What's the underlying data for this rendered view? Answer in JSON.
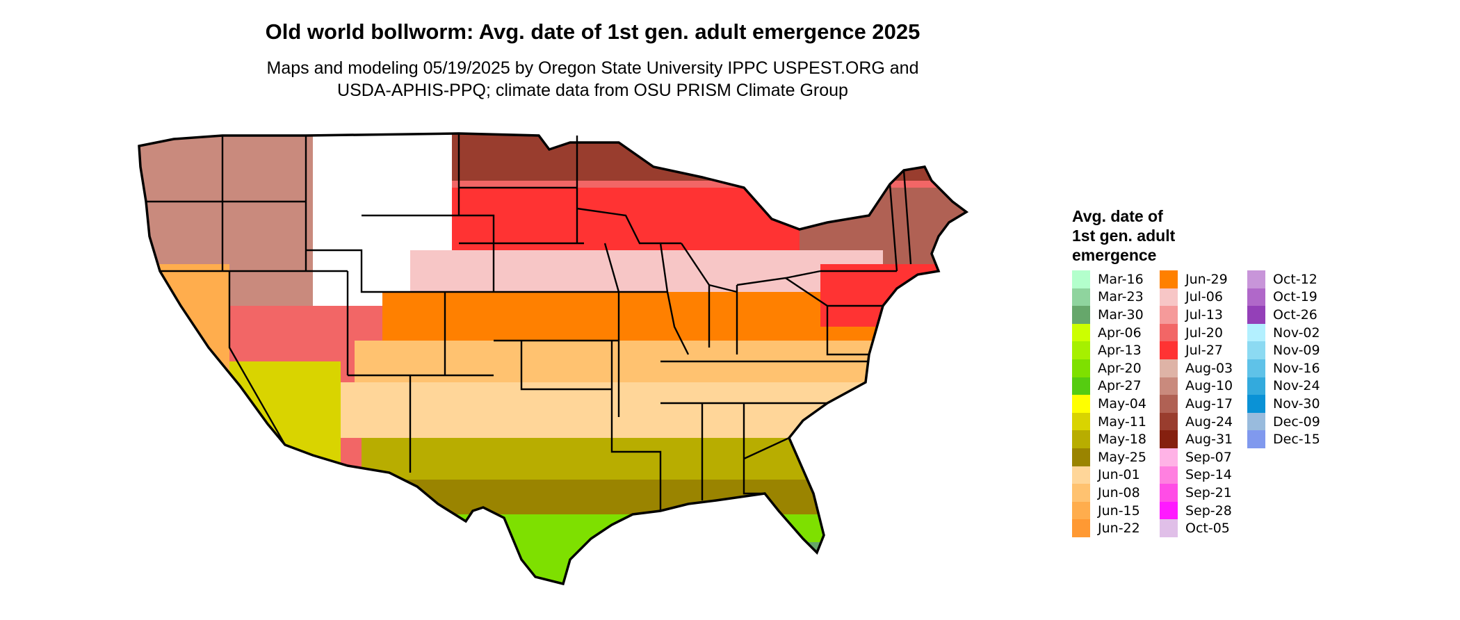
{
  "title": "Old world bollworm: Avg. date of 1st gen. adult emergence 2025",
  "subtitle_line1": "Maps and modeling 05/19/2025 by Oregon State University IPPC USPEST.ORG and",
  "subtitle_line2": "USDA-APHIS-PPQ; climate data from OSU PRISM Climate Group",
  "legend": {
    "title_lines": [
      "Avg. date of",
      "1st gen. adult",
      "emergence"
    ],
    "items": [
      {
        "label": "Mar-16",
        "color": "#b3ffcc"
      },
      {
        "label": "Mar-23",
        "color": "#8fd49e"
      },
      {
        "label": "Mar-30",
        "color": "#66a76b"
      },
      {
        "label": "Apr-06",
        "color": "#ccff00"
      },
      {
        "label": "Apr-13",
        "color": "#a6f000"
      },
      {
        "label": "Apr-20",
        "color": "#7ee000"
      },
      {
        "label": "Apr-27",
        "color": "#55cc11"
      },
      {
        "label": "May-04",
        "color": "#ffff00"
      },
      {
        "label": "May-11",
        "color": "#d9d400"
      },
      {
        "label": "May-18",
        "color": "#b8ad00"
      },
      {
        "label": "May-25",
        "color": "#9a8400"
      },
      {
        "label": "Jun-01",
        "color": "#ffd699"
      },
      {
        "label": "Jun-08",
        "color": "#ffc270"
      },
      {
        "label": "Jun-15",
        "color": "#ffad4d"
      },
      {
        "label": "Jun-22",
        "color": "#ff9933"
      },
      {
        "label": "Jun-29",
        "color": "#ff8000"
      },
      {
        "label": "Jul-06",
        "color": "#f7c6c6"
      },
      {
        "label": "Jul-13",
        "color": "#f59a9a"
      },
      {
        "label": "Jul-20",
        "color": "#f26666"
      },
      {
        "label": "Jul-27",
        "color": "#ff3333"
      },
      {
        "label": "Aug-03",
        "color": "#deb3a6"
      },
      {
        "label": "Aug-10",
        "color": "#c98a7d"
      },
      {
        "label": "Aug-17",
        "color": "#b06154"
      },
      {
        "label": "Aug-24",
        "color": "#993d2e"
      },
      {
        "label": "Aug-31",
        "color": "#85200f"
      },
      {
        "label": "Sep-07",
        "color": "#ffb3e6"
      },
      {
        "label": "Sep-14",
        "color": "#ff80e0"
      },
      {
        "label": "Sep-21",
        "color": "#ff4de6"
      },
      {
        "label": "Sep-28",
        "color": "#ff1aff"
      },
      {
        "label": "Oct-05",
        "color": "#e0bfe8"
      },
      {
        "label": "Oct-12",
        "color": "#c895d9"
      },
      {
        "label": "Oct-19",
        "color": "#b068c9"
      },
      {
        "label": "Oct-26",
        "color": "#9440b8"
      },
      {
        "label": "Nov-02",
        "color": "#b3f0ff"
      },
      {
        "label": "Nov-09",
        "color": "#8cdaf2"
      },
      {
        "label": "Nov-16",
        "color": "#5fc2e8"
      },
      {
        "label": "Nov-24",
        "color": "#33aadd"
      },
      {
        "label": "Nov-30",
        "color": "#0a92d6"
      },
      {
        "label": "Dec-09",
        "color": "#99bbdd"
      },
      {
        "label": "Dec-15",
        "color": "#8099ee"
      }
    ]
  }
}
